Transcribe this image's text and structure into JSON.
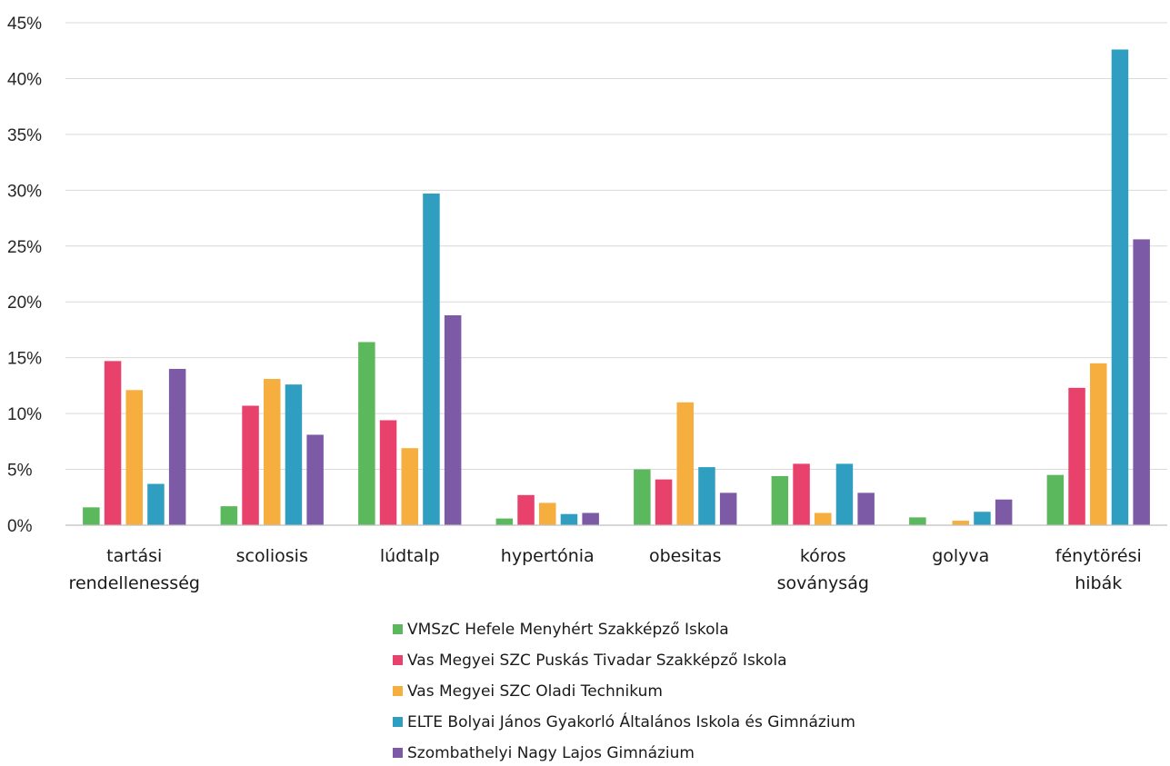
{
  "chart_data": {
    "type": "bar",
    "title": "",
    "xlabel": "",
    "ylabel": "",
    "ylim": [
      0,
      45
    ],
    "y_ticks": [
      "0%",
      "5%",
      "10%",
      "15%",
      "20%",
      "25%",
      "30%",
      "35%",
      "40%",
      "45%"
    ],
    "y_tick_values": [
      0,
      5,
      10,
      15,
      20,
      25,
      30,
      35,
      40,
      45
    ],
    "grid": true,
    "legend_position": "bottom",
    "categories": [
      [
        "tartási",
        "rendellenesség"
      ],
      [
        "scoliosis"
      ],
      [
        "lúdtalp"
      ],
      [
        "hypertónia"
      ],
      [
        "obesitas"
      ],
      [
        "kóros",
        "soványság"
      ],
      [
        "golyva"
      ],
      [
        "fénytörési",
        "hibák"
      ]
    ],
    "series": [
      {
        "name": "VMSzC Hefele Menyhért Szakképző Iskola",
        "color": "#5cb85c",
        "values": [
          1.6,
          1.7,
          16.4,
          0.6,
          5.0,
          4.4,
          0.7,
          4.5
        ]
      },
      {
        "name": "Vas Megyei SZC Puskás Tivadar Szakképző Iskola",
        "color": "#e8416b",
        "values": [
          14.7,
          10.7,
          9.4,
          2.7,
          4.1,
          5.5,
          0.0,
          12.3
        ]
      },
      {
        "name": "Vas Megyei SZC Oladi Technikum",
        "color": "#f6ae3f",
        "values": [
          12.1,
          13.1,
          6.9,
          2.0,
          11.0,
          1.1,
          0.4,
          14.5
        ]
      },
      {
        "name": "ELTE Bolyai János Gyakorló Általános Iskola és Gimnázium",
        "color": "#2f9ec1",
        "values": [
          3.7,
          12.6,
          29.7,
          1.0,
          5.2,
          5.5,
          1.2,
          42.6
        ]
      },
      {
        "name": "Szombathelyi Nagy Lajos Gimnázium",
        "color": "#7d5aa6",
        "values": [
          14.0,
          8.1,
          18.8,
          1.1,
          2.9,
          2.9,
          2.3,
          25.6
        ]
      }
    ]
  }
}
